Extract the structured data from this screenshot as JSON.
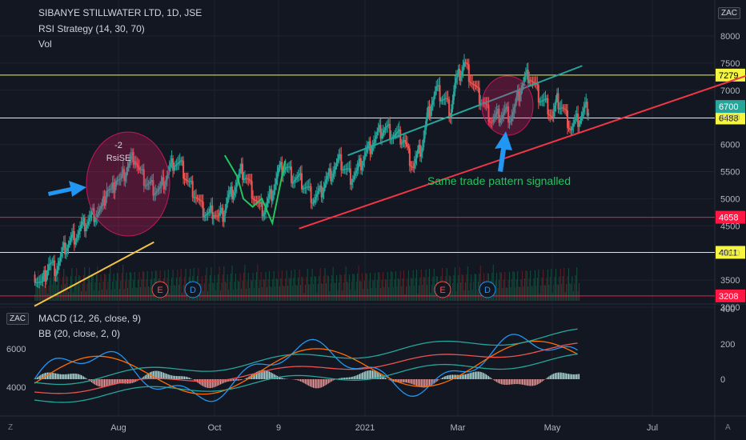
{
  "header": {
    "symbol_line": "SIBANYE STILLWATER LTD, 1D, JSE",
    "strategy_line": "RSI Strategy (14, 30, 70)",
    "volume_line": "Vol"
  },
  "lower_header": {
    "macd_line": "MACD (12, 26, close, 9)",
    "bb_line": "BB (20, close, 2, 0)"
  },
  "currency_badge": "ZAC",
  "nav_icons": {
    "left": "Z",
    "right": "A"
  },
  "chart_data": {
    "type": "candlestick",
    "price_axis": {
      "ticks": [
        "8000",
        "7500",
        "7000",
        "6500",
        "6000",
        "5500",
        "5000",
        "4500",
        "4000",
        "3500",
        "3000"
      ],
      "range": [
        3000,
        8250
      ]
    },
    "time_axis": {
      "ticks": [
        "Aug",
        "Oct",
        "9",
        "2021",
        "Mar",
        "May",
        "Jul"
      ]
    },
    "levels": [
      {
        "value": 7279,
        "label": "7279",
        "color": "#f5f542",
        "label_bg": "#f5f542",
        "label_fg": "#000000"
      },
      {
        "value": 6488,
        "label": "6488",
        "color": "#f5f542",
        "label_bg": "#f5f542",
        "label_fg": "#000000"
      },
      {
        "value": 4658,
        "label": "4658",
        "color": "#ff1744",
        "label_bg": "#ff1744",
        "label_fg": "#ffffff"
      },
      {
        "value": 4011,
        "label": "4011",
        "color": "#f5f542",
        "label_bg": "#f5f542",
        "label_fg": "#000000"
      },
      {
        "value": 3208,
        "label": "3208",
        "color": "#ff1744",
        "label_bg": "#ff1744",
        "label_fg": "#ffffff"
      }
    ],
    "last_price": {
      "value": 6700,
      "label": "6700",
      "bg": "#26a69a"
    },
    "price_series": [
      [
        0,
        3600
      ],
      [
        6,
        3400
      ],
      [
        12,
        3800
      ],
      [
        18,
        3700
      ],
      [
        26,
        4100
      ],
      [
        34,
        4300
      ],
      [
        42,
        4500
      ],
      [
        50,
        4700
      ],
      [
        58,
        4800
      ],
      [
        62,
        5200
      ],
      [
        66,
        5100
      ],
      [
        70,
        5400
      ],
      [
        74,
        5300
      ],
      [
        80,
        5600
      ],
      [
        86,
        5800
      ],
      [
        90,
        5500
      ],
      [
        96,
        5300
      ],
      [
        102,
        5200
      ],
      [
        108,
        5150
      ],
      [
        114,
        5450
      ],
      [
        120,
        5700
      ],
      [
        126,
        5600
      ],
      [
        132,
        5300
      ],
      [
        138,
        5100
      ],
      [
        144,
        4800
      ],
      [
        150,
        4700
      ],
      [
        154,
        4800
      ],
      [
        158,
        4650
      ],
      [
        162,
        4700
      ],
      [
        166,
        5000
      ],
      [
        172,
        5200
      ],
      [
        178,
        5500
      ],
      [
        182,
        5400
      ],
      [
        188,
        5100
      ],
      [
        194,
        4800
      ],
      [
        198,
        4800
      ],
      [
        204,
        5100
      ],
      [
        210,
        5500
      ],
      [
        216,
        5600
      ],
      [
        222,
        5400
      ],
      [
        228,
        5350
      ],
      [
        234,
        5200
      ],
      [
        240,
        5000
      ],
      [
        246,
        5100
      ],
      [
        250,
        5300
      ],
      [
        256,
        5500
      ],
      [
        262,
        5700
      ],
      [
        266,
        5600
      ],
      [
        272,
        5400
      ],
      [
        278,
        5500
      ],
      [
        284,
        5800
      ],
      [
        290,
        6000
      ],
      [
        296,
        6200
      ],
      [
        302,
        6300
      ],
      [
        308,
        6200
      ],
      [
        312,
        6150
      ],
      [
        318,
        6100
      ],
      [
        322,
        5800
      ],
      [
        326,
        5600
      ],
      [
        330,
        5800
      ],
      [
        334,
        6000
      ],
      [
        338,
        6500
      ],
      [
        342,
        6800
      ],
      [
        346,
        7000
      ],
      [
        350,
        6900
      ],
      [
        354,
        6800
      ],
      [
        358,
        6600
      ],
      [
        362,
        7100
      ],
      [
        366,
        7300
      ],
      [
        370,
        7500
      ],
      [
        374,
        7300
      ],
      [
        378,
        7100
      ],
      [
        382,
        6900
      ],
      [
        386,
        6800
      ],
      [
        390,
        6600
      ],
      [
        394,
        6450
      ],
      [
        398,
        6500
      ],
      [
        402,
        6550
      ],
      [
        406,
        6600
      ],
      [
        410,
        6500
      ],
      [
        414,
        6700
      ],
      [
        418,
        7000
      ],
      [
        422,
        7200
      ],
      [
        426,
        7300
      ],
      [
        430,
        7100
      ],
      [
        434,
        6900
      ],
      [
        438,
        6800
      ],
      [
        442,
        6700
      ],
      [
        446,
        6500
      ],
      [
        450,
        6800
      ],
      [
        454,
        6700
      ],
      [
        458,
        6500
      ],
      [
        462,
        6300
      ],
      [
        466,
        6400
      ],
      [
        470,
        6500
      ],
      [
        474,
        6650
      ],
      [
        478,
        6700
      ]
    ],
    "trend_lines": [
      {
        "color": "#26a69a",
        "from": [
          270,
          5800
        ],
        "to": [
          472,
          7450
        ]
      },
      {
        "color": "#f23645",
        "from": [
          228,
          4450
        ],
        "to": [
          618,
          7300
        ]
      },
      {
        "color": "#f5c542",
        "from": [
          0,
          3020
        ],
        "to": [
          103,
          4200
        ]
      }
    ],
    "zigzag_green": [
      [
        164,
        5800
      ],
      [
        175,
        5400
      ],
      [
        180,
        5000
      ],
      [
        188,
        4850
      ],
      [
        196,
        5000
      ],
      [
        205,
        4550
      ],
      [
        216,
        5700
      ]
    ],
    "annotations": {
      "rsi_label_line1": "-2",
      "rsi_label_line2": "RsiSE",
      "pattern_text": "Same trade  pattern signalled",
      "earnings_marker": "E",
      "dividend_marker": "D"
    },
    "macd_axis": {
      "ticks": [
        "400",
        "200",
        "0"
      ]
    },
    "bb_axis": {
      "ticks": [
        "6000",
        "4000"
      ]
    }
  }
}
